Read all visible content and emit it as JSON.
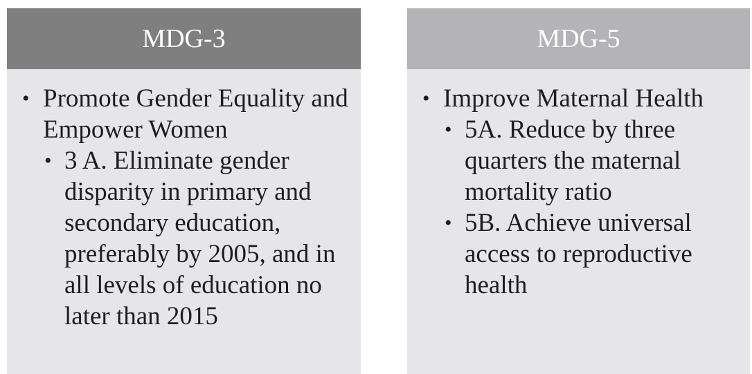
{
  "panels": [
    {
      "title": "MDG-3",
      "items": [
        {
          "text": "Promote Gender Equality and Empower Women",
          "subitems": [
            "3 A. Eliminate gender disparity in primary and secondary education, preferably by 2005, and in all levels of education no later than 2015"
          ]
        }
      ]
    },
    {
      "title": "MDG-5",
      "items": [
        {
          "text": "Improve Maternal Health",
          "subitems": [
            "5A. Reduce by three quarters the maternal mortality ratio",
            "5B. Achieve universal access to reproductive health"
          ]
        }
      ]
    }
  ]
}
